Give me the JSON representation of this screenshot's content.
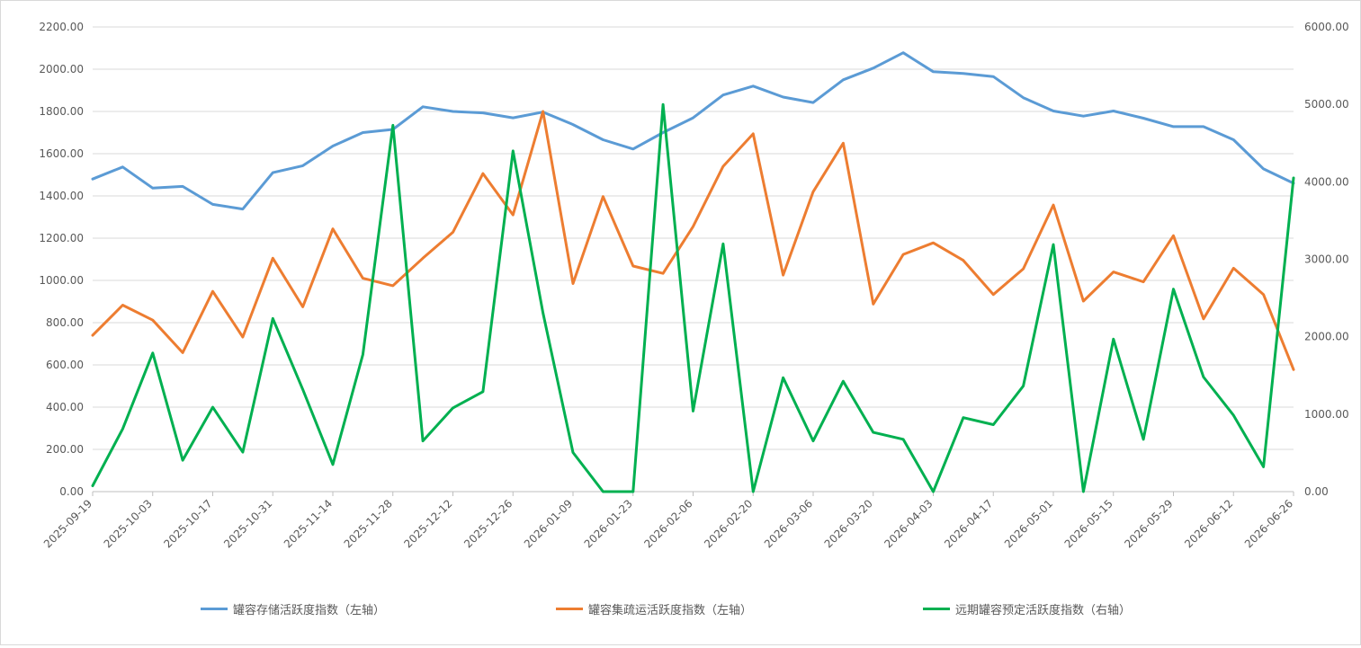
{
  "chart_data": {
    "type": "line",
    "x": [
      "2025-09-19",
      "2025-09-26",
      "2025-10-03",
      "2025-10-10",
      "2025-10-17",
      "2025-10-24",
      "2025-10-31",
      "2025-11-07",
      "2025-11-14",
      "2025-11-21",
      "2025-11-28",
      "2025-12-05",
      "2025-12-12",
      "2025-12-19",
      "2025-12-26",
      "2026-01-02",
      "2026-01-09",
      "2026-01-16",
      "2026-01-23",
      "2026-01-30",
      "2026-02-06",
      "2026-02-13",
      "2026-02-20",
      "2026-02-27",
      "2026-03-06",
      "2026-03-13",
      "2026-03-20",
      "2026-03-27",
      "2026-04-03",
      "2026-04-10",
      "2026-04-17",
      "2026-04-24",
      "2026-05-01",
      "2026-05-08",
      "2026-05-15",
      "2026-05-22",
      "2026-05-29",
      "2026-06-05",
      "2026-06-12",
      "2026-06-19",
      "2026-06-26"
    ],
    "x_tick_labels": [
      "2025-09-19",
      "2025-10-03",
      "2025-10-17",
      "2025-10-31",
      "2025-11-14",
      "2025-11-28",
      "2025-12-12",
      "2025-12-26",
      "2026-01-09",
      "2026-01-23",
      "2026-02-06",
      "2026-02-20",
      "2026-03-06",
      "2026-03-20",
      "2026-04-03",
      "2026-04-17",
      "2026-05-01",
      "2026-05-15",
      "2026-05-29",
      "2026-06-12",
      "2026-06-26"
    ],
    "y_left": {
      "min": 0,
      "max": 2200,
      "step": 200,
      "tick_labels": [
        "0.00",
        "200.00",
        "400.00",
        "600.00",
        "800.00",
        "1000.00",
        "1200.00",
        "1400.00",
        "1600.00",
        "1800.00",
        "2000.00",
        "2200.00"
      ]
    },
    "y_right": {
      "min": 0,
      "max": 6000,
      "step": 1000,
      "tick_labels": [
        "0.00",
        "1000.00",
        "2000.00",
        "3000.00",
        "4000.00",
        "5000.00",
        "6000.00"
      ]
    },
    "grid": true,
    "legend_position": "bottom",
    "series": [
      {
        "name": "罐容存储活跃度指数（左轴）",
        "axis": "left",
        "color": "#5b9bd5",
        "values": [
          1480,
          1537,
          1437,
          1445,
          1360,
          1338,
          1510,
          1543,
          1636,
          1700,
          1715,
          1822,
          1800,
          1793,
          1770,
          1797,
          1738,
          1666,
          1622,
          1700,
          1770,
          1878,
          1920,
          1868,
          1842,
          1950,
          2005,
          2078,
          1988,
          1980,
          1965,
          1865,
          1802,
          1778,
          1802,
          1768,
          1728,
          1728,
          1666,
          1528,
          1460
        ]
      },
      {
        "name": "罐容集疏运活跃度指数（左轴）",
        "axis": "left",
        "color": "#ed7d31",
        "values": [
          740,
          883,
          812,
          658,
          948,
          732,
          1105,
          875,
          1244,
          1010,
          975,
          1105,
          1228,
          1506,
          1310,
          1800,
          985,
          1397,
          1068,
          1033,
          1255,
          1540,
          1694,
          1025,
          1420,
          1650,
          888,
          1123,
          1178,
          1095,
          933,
          1055,
          1357,
          902,
          1040,
          993,
          1212,
          818,
          1058,
          933,
          578
        ]
      },
      {
        "name": "远期罐容预定活跃度指数（右轴）",
        "axis": "right",
        "color": "#00b050",
        "values": [
          75,
          810,
          1790,
          405,
          1090,
          510,
          2235,
          1320,
          350,
          1770,
          4730,
          655,
          1080,
          1290,
          4400,
          2310,
          505,
          0,
          0,
          5000,
          1040,
          3200,
          0,
          1470,
          655,
          1425,
          765,
          675,
          0,
          955,
          865,
          1365,
          3190,
          0,
          1970,
          675,
          2615,
          1480,
          985,
          320,
          4050
        ]
      }
    ]
  }
}
